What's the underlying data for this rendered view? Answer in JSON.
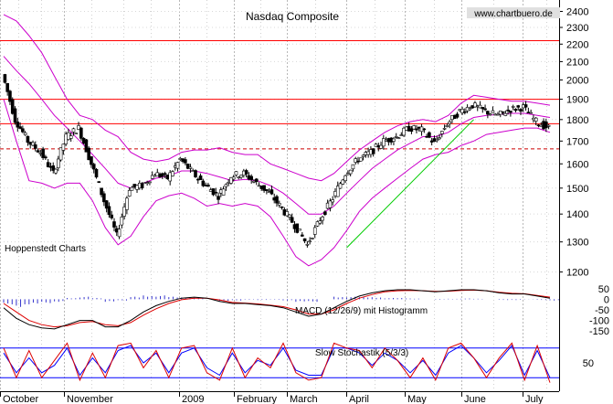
{
  "chart_data": {
    "type": "candlestick",
    "title": "Nasdaq Composite",
    "watermark": "www.chartbuero.de",
    "source_label": "Hoppenstedt Charts",
    "months": [
      "October",
      "November",
      "2009",
      "February",
      "March",
      "April",
      "May",
      "June",
      "July"
    ],
    "price_axis": {
      "ticks": [
        2400,
        2300,
        2200,
        2100,
        2000,
        1900,
        1800,
        1700,
        1600,
        1500,
        1400,
        1300,
        1200
      ],
      "scale": "log",
      "range": [
        1170,
        2450
      ]
    },
    "horizontal_lines": [
      {
        "value": 2220,
        "style": "solid",
        "color": "#ff0000"
      },
      {
        "value": 1900,
        "style": "solid",
        "color": "#ff0000"
      },
      {
        "value": 1780,
        "style": "solid",
        "color": "#ff0000"
      },
      {
        "value": 1665,
        "style": "dashed",
        "color": "#cc0000"
      }
    ],
    "trendline": {
      "from": {
        "week": 27,
        "value": 1280
      },
      "to": {
        "week": 37,
        "value": 1800
      },
      "color": "#00cc00"
    },
    "price_weekly": [
      {
        "week": 0,
        "close": 2030,
        "bb_up": 2380,
        "bb_mid": 2130,
        "bb_lo": 1900
      },
      {
        "week": 1,
        "close": 1800,
        "bb_up": 2340,
        "bb_mid": 2050,
        "bb_lo": 1700
      },
      {
        "week": 2,
        "close": 1700,
        "bb_up": 2250,
        "bb_mid": 1980,
        "bb_lo": 1530
      },
      {
        "week": 3,
        "close": 1650,
        "bb_up": 2150,
        "bb_mid": 1900,
        "bb_lo": 1520
      },
      {
        "week": 4,
        "close": 1560,
        "bb_up": 2020,
        "bb_mid": 1820,
        "bb_lo": 1500
      },
      {
        "week": 5,
        "close": 1720,
        "bb_up": 1900,
        "bb_mid": 1760,
        "bb_lo": 1520
      },
      {
        "week": 6,
        "close": 1760,
        "bb_up": 1820,
        "bb_mid": 1700,
        "bb_lo": 1520
      },
      {
        "week": 7,
        "close": 1600,
        "bb_up": 1800,
        "bb_mid": 1640,
        "bb_lo": 1450
      },
      {
        "week": 8,
        "close": 1450,
        "bb_up": 1750,
        "bb_mid": 1580,
        "bb_lo": 1350
      },
      {
        "week": 9,
        "close": 1320,
        "bb_up": 1720,
        "bb_mid": 1520,
        "bb_lo": 1290
      },
      {
        "week": 10,
        "close": 1500,
        "bb_up": 1650,
        "bb_mid": 1500,
        "bb_lo": 1320
      },
      {
        "week": 11,
        "close": 1510,
        "bb_up": 1620,
        "bb_mid": 1520,
        "bb_lo": 1390
      },
      {
        "week": 12,
        "close": 1560,
        "bb_up": 1610,
        "bb_mid": 1540,
        "bb_lo": 1450
      },
      {
        "week": 13,
        "close": 1540,
        "bb_up": 1620,
        "bb_mid": 1550,
        "bb_lo": 1470
      },
      {
        "week": 14,
        "close": 1620,
        "bb_up": 1650,
        "bb_mid": 1570,
        "bb_lo": 1480
      },
      {
        "week": 15,
        "close": 1560,
        "bb_up": 1660,
        "bb_mid": 1570,
        "bb_lo": 1460
      },
      {
        "week": 16,
        "close": 1510,
        "bb_up": 1660,
        "bb_mid": 1560,
        "bb_lo": 1430
      },
      {
        "week": 17,
        "close": 1470,
        "bb_up": 1670,
        "bb_mid": 1545,
        "bb_lo": 1440
      },
      {
        "week": 18,
        "close": 1550,
        "bb_up": 1650,
        "bb_mid": 1530,
        "bb_lo": 1430
      },
      {
        "week": 19,
        "close": 1560,
        "bb_up": 1640,
        "bb_mid": 1535,
        "bb_lo": 1440
      },
      {
        "week": 20,
        "close": 1520,
        "bb_up": 1640,
        "bb_mid": 1530,
        "bb_lo": 1430
      },
      {
        "week": 21,
        "close": 1480,
        "bb_up": 1600,
        "bb_mid": 1510,
        "bb_lo": 1390
      },
      {
        "week": 22,
        "close": 1420,
        "bb_up": 1580,
        "bb_mid": 1480,
        "bb_lo": 1320
      },
      {
        "week": 23,
        "close": 1360,
        "bb_up": 1560,
        "bb_mid": 1440,
        "bb_lo": 1250
      },
      {
        "week": 24,
        "close": 1290,
        "bb_up": 1540,
        "bb_mid": 1400,
        "bb_lo": 1220
      },
      {
        "week": 25,
        "close": 1380,
        "bb_up": 1530,
        "bb_mid": 1400,
        "bb_lo": 1240
      },
      {
        "week": 26,
        "close": 1460,
        "bb_up": 1560,
        "bb_mid": 1430,
        "bb_lo": 1280
      },
      {
        "week": 27,
        "close": 1560,
        "bb_up": 1610,
        "bb_mid": 1480,
        "bb_lo": 1340
      },
      {
        "week": 28,
        "close": 1620,
        "bb_up": 1660,
        "bb_mid": 1530,
        "bb_lo": 1410
      },
      {
        "week": 29,
        "close": 1650,
        "bb_up": 1700,
        "bb_mid": 1580,
        "bb_lo": 1460
      },
      {
        "week": 30,
        "close": 1700,
        "bb_up": 1740,
        "bb_mid": 1620,
        "bb_lo": 1500
      },
      {
        "week": 31,
        "close": 1720,
        "bb_up": 1770,
        "bb_mid": 1660,
        "bb_lo": 1540
      },
      {
        "week": 32,
        "close": 1760,
        "bb_up": 1790,
        "bb_mid": 1690,
        "bb_lo": 1580
      },
      {
        "week": 33,
        "close": 1750,
        "bb_up": 1800,
        "bb_mid": 1720,
        "bb_lo": 1620
      },
      {
        "week": 34,
        "close": 1690,
        "bb_up": 1790,
        "bb_mid": 1720,
        "bb_lo": 1640
      },
      {
        "week": 35,
        "close": 1780,
        "bb_up": 1820,
        "bb_mid": 1740,
        "bb_lo": 1650
      },
      {
        "week": 36,
        "close": 1840,
        "bb_up": 1880,
        "bb_mid": 1780,
        "bb_lo": 1680
      },
      {
        "week": 37,
        "close": 1870,
        "bb_up": 1920,
        "bb_mid": 1810,
        "bb_lo": 1700
      },
      {
        "week": 38,
        "close": 1840,
        "bb_up": 1910,
        "bb_mid": 1820,
        "bb_lo": 1730
      },
      {
        "week": 39,
        "close": 1820,
        "bb_up": 1900,
        "bb_mid": 1825,
        "bb_lo": 1740
      },
      {
        "week": 40,
        "close": 1850,
        "bb_up": 1890,
        "bb_mid": 1830,
        "bb_lo": 1750
      },
      {
        "week": 41,
        "close": 1860,
        "bb_up": 1890,
        "bb_mid": 1830,
        "bb_lo": 1760
      },
      {
        "week": 42,
        "close": 1790,
        "bb_up": 1880,
        "bb_mid": 1820,
        "bb_lo": 1760
      },
      {
        "week": 43,
        "close": 1760,
        "bb_up": 1870,
        "bb_mid": 1810,
        "bb_lo": 1740
      }
    ],
    "macd": {
      "label": "MACD (12/26/9) mit Histogramm",
      "ticks": [
        50,
        0,
        -50,
        -100,
        -150
      ],
      "range": [
        -175,
        75
      ],
      "values": [
        -40,
        -90,
        -120,
        -135,
        -140,
        -120,
        -100,
        -100,
        -130,
        -130,
        -100,
        -60,
        -30,
        -10,
        5,
        10,
        5,
        -10,
        -20,
        -20,
        -25,
        -30,
        -40,
        -60,
        -80,
        -70,
        -40,
        -10,
        15,
        30,
        40,
        45,
        45,
        40,
        35,
        40,
        45,
        45,
        40,
        30,
        25,
        25,
        15,
        5
      ],
      "signal": [
        -20,
        -60,
        -100,
        -120,
        -130,
        -125,
        -110,
        -105,
        -120,
        -125,
        -110,
        -75,
        -45,
        -20,
        -2,
        5,
        5,
        -3,
        -15,
        -18,
        -22,
        -28,
        -35,
        -50,
        -70,
        -70,
        -50,
        -20,
        5,
        22,
        35,
        40,
        42,
        40,
        37,
        38,
        42,
        43,
        40,
        33,
        28,
        26,
        18,
        10
      ],
      "histogram": [
        -20,
        -30,
        -20,
        -15,
        -10,
        5,
        10,
        5,
        -10,
        -5,
        10,
        15,
        15,
        10,
        7,
        5,
        0,
        -7,
        -5,
        -2,
        -3,
        -2,
        -5,
        -10,
        -10,
        0,
        10,
        10,
        10,
        8,
        5,
        5,
        3,
        0,
        -2,
        2,
        3,
        2,
        0,
        -3,
        -3,
        -1,
        -3,
        -5
      ]
    },
    "stochastic": {
      "label": "Slow Stochastik (5/3/3)",
      "ticks": [
        50
      ],
      "range": [
        0,
        100
      ],
      "levels": [
        80,
        20
      ],
      "k": [
        80,
        20,
        75,
        20,
        55,
        90,
        15,
        70,
        20,
        85,
        90,
        40,
        75,
        20,
        80,
        85,
        30,
        15,
        80,
        20,
        60,
        40,
        90,
        30,
        15,
        20,
        90,
        80,
        75,
        40,
        80,
        55,
        20,
        60,
        15,
        80,
        90,
        60,
        20,
        60,
        90,
        15,
        85,
        10
      ],
      "d": [
        70,
        30,
        60,
        30,
        45,
        80,
        25,
        60,
        30,
        75,
        85,
        50,
        70,
        30,
        70,
        80,
        40,
        25,
        70,
        30,
        55,
        45,
        80,
        35,
        25,
        25,
        80,
        80,
        70,
        45,
        70,
        55,
        30,
        55,
        25,
        70,
        85,
        60,
        30,
        55,
        85,
        25,
        75,
        20
      ]
    }
  }
}
